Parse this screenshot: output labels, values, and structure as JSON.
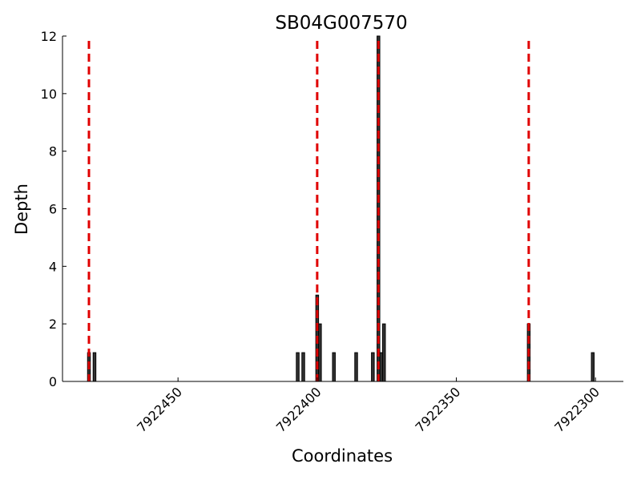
{
  "chart_data": {
    "type": "bar",
    "title": "SB04G007570",
    "x_label": "Coordinates",
    "y_label": "Depth",
    "x": [
      7922482,
      7922480,
      7922407,
      7922405,
      7922400,
      7922399,
      7922394,
      7922386,
      7922380,
      7922378,
      7922377,
      7922376,
      7922324,
      7922301
    ],
    "values": [
      1,
      1,
      1,
      1,
      3,
      2,
      1,
      1,
      1,
      12,
      1,
      2,
      2,
      1
    ],
    "color": "#333333",
    "xlim": [
      7922491.5,
      7922290
    ],
    "xticks": [
      7922450,
      7922400,
      7922350,
      7922300
    ],
    "ylim": [
      0,
      12
    ],
    "yticks": [
      0,
      2,
      4,
      6,
      8,
      10,
      12
    ],
    "vlines": [
      7922482,
      7922400,
      7922378,
      7922324
    ],
    "vline_color": "#e00000"
  }
}
